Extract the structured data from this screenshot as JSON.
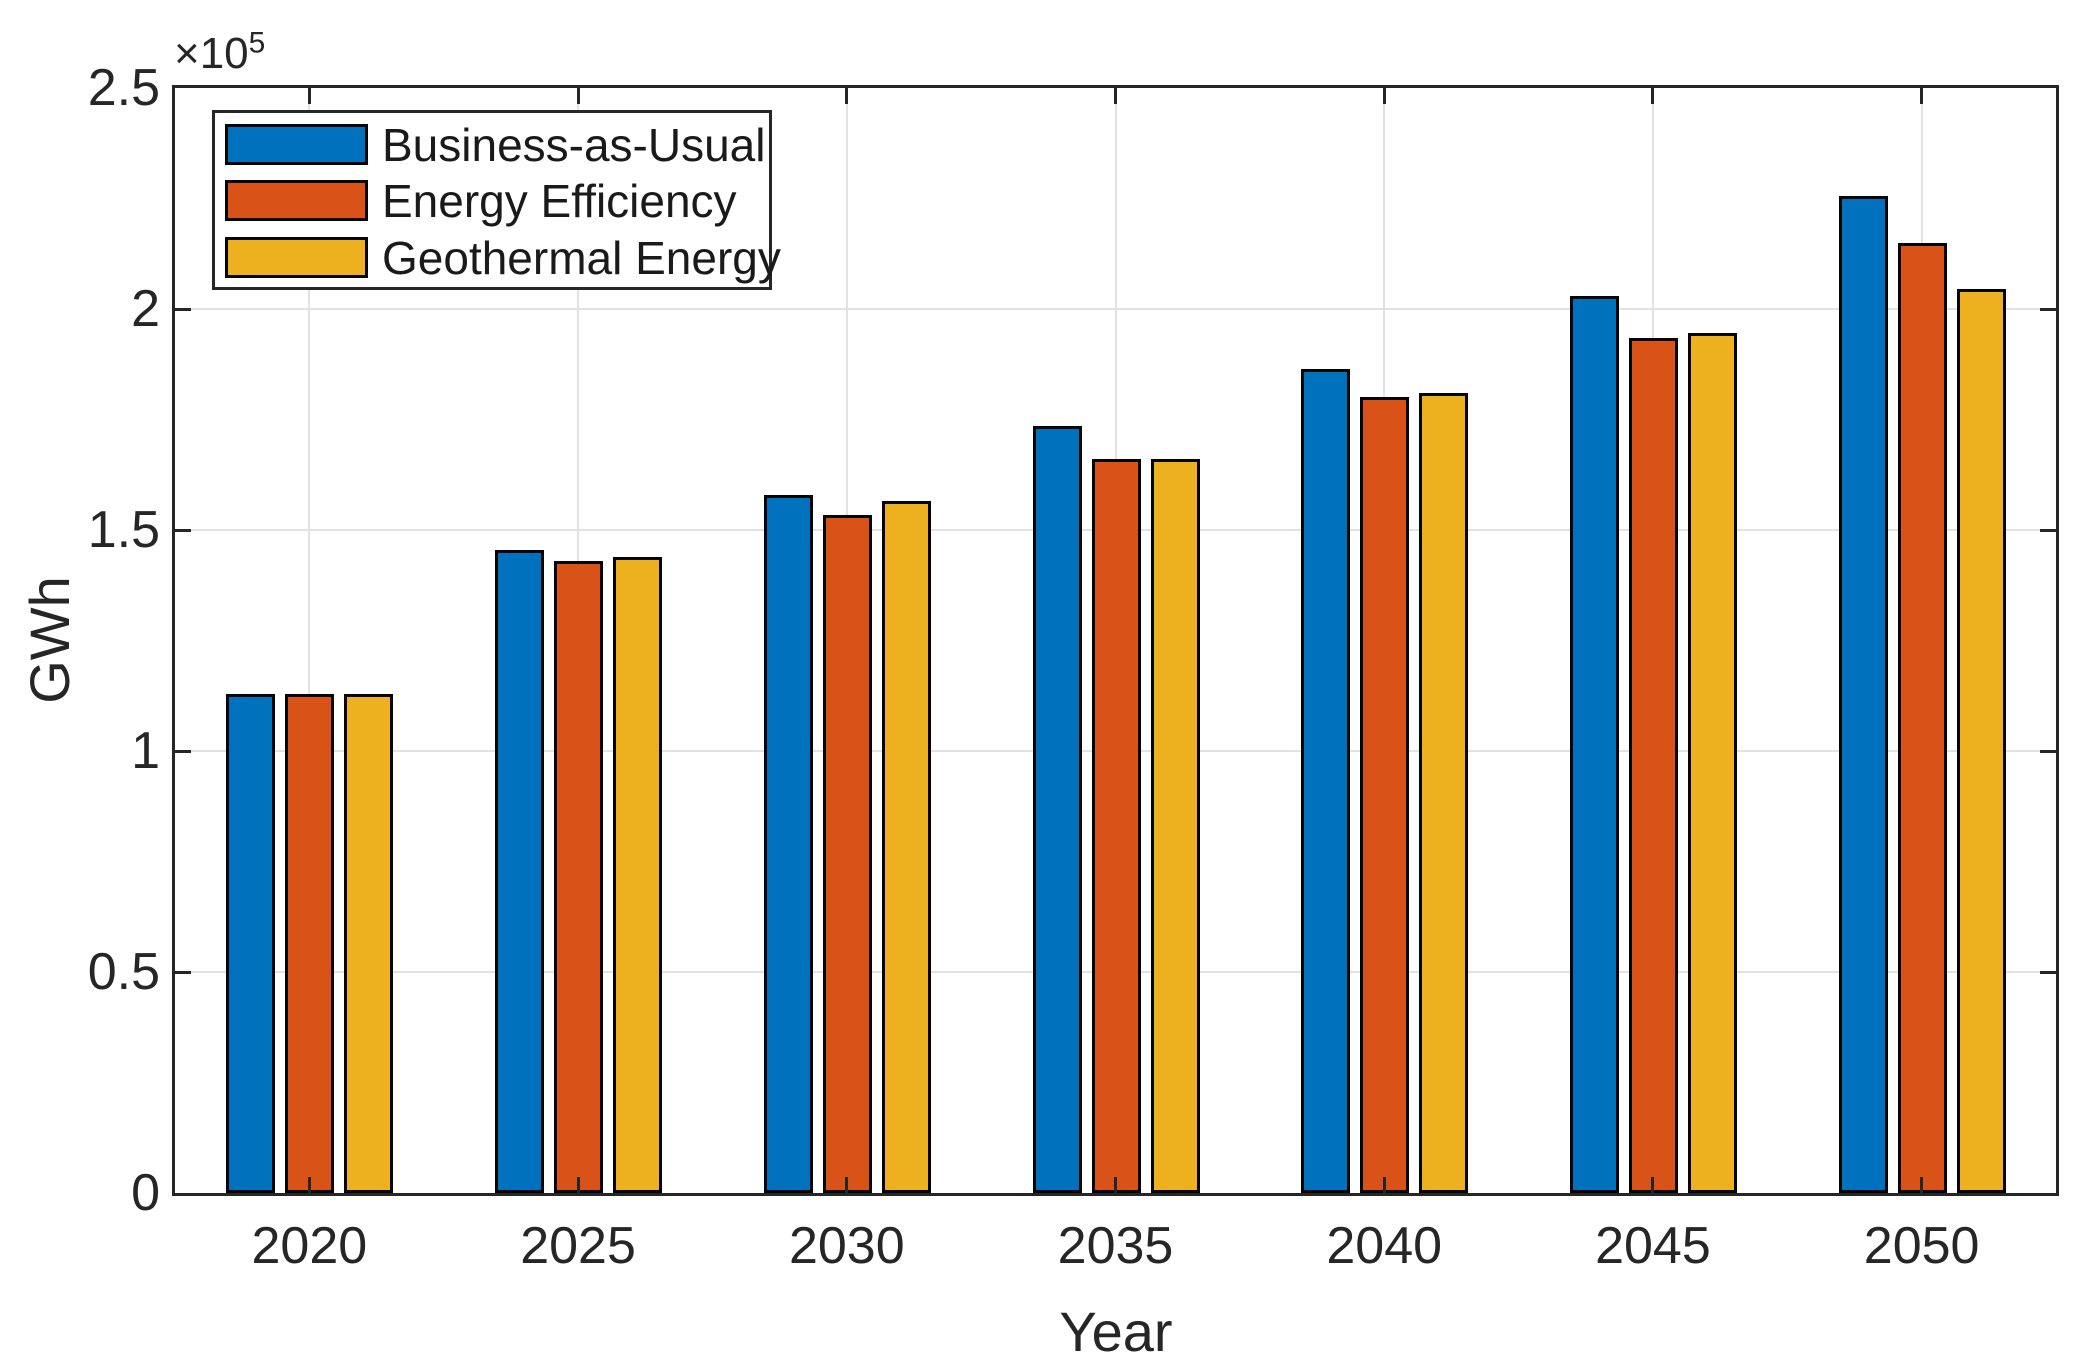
{
  "chart_data": {
    "type": "bar",
    "title": "",
    "xlabel": "Year",
    "ylabel": "GWh",
    "y_exponent_label": "×10",
    "y_exponent_power": "5",
    "categories": [
      "2020",
      "2025",
      "2030",
      "2035",
      "2040",
      "2045",
      "2050"
    ],
    "series": [
      {
        "name": "Business-as-Usual",
        "color": "#0072BD",
        "values": [
          113000,
          145500,
          158000,
          173500,
          186500,
          203000,
          225500
        ]
      },
      {
        "name": "Energy Efficiency",
        "color": "#D95319",
        "values": [
          113000,
          143000,
          153500,
          166000,
          180000,
          193500,
          215000
        ]
      },
      {
        "name": "Geothermal Energy",
        "color": "#EDB120",
        "values": [
          113000,
          144000,
          156500,
          166000,
          181000,
          194500,
          204500
        ]
      }
    ],
    "ylim": [
      0,
      250000
    ],
    "ytick_values": [
      0,
      50000,
      100000,
      150000,
      200000,
      250000
    ],
    "ytick_labels": [
      "0",
      "0.5",
      "1",
      "1.5",
      "2",
      "2.5"
    ],
    "grid": true,
    "legend_position": "top-left",
    "axis_color": "#262626",
    "grid_color": "#e2e2e2",
    "bar_edge_color": "#050505",
    "background_color": "#ffffff"
  }
}
